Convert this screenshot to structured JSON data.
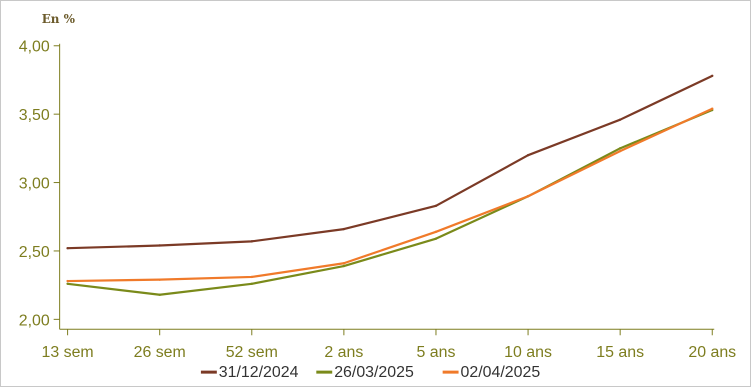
{
  "chart_data": {
    "type": "line",
    "unit_label": "En %",
    "categories": [
      "13 sem",
      "26 sem",
      "52 sem",
      "2 ans",
      "5 ans",
      "10 ans",
      "15 ans",
      "20 ans"
    ],
    "ylim": [
      2.0,
      4.0
    ],
    "yticks": [
      {
        "value": 2.0,
        "label": "2,00"
      },
      {
        "value": 2.5,
        "label": "2,50"
      },
      {
        "value": 3.0,
        "label": "3,00"
      },
      {
        "value": 3.5,
        "label": "3,50"
      },
      {
        "value": 4.0,
        "label": "4,00"
      }
    ],
    "grid": false,
    "legend_position": "bottom",
    "series": [
      {
        "name": "31/12/2024",
        "color": "#7b3a26",
        "values": [
          2.52,
          2.54,
          2.57,
          2.66,
          2.83,
          3.2,
          3.46,
          3.78
        ]
      },
      {
        "name": "26/03/2025",
        "color": "#7a8a1a",
        "values": [
          2.26,
          2.18,
          2.26,
          2.39,
          2.59,
          2.9,
          3.25,
          3.53
        ]
      },
      {
        "name": "02/04/2025",
        "color": "#f07a2a",
        "values": [
          2.28,
          2.29,
          2.31,
          2.41,
          2.64,
          2.9,
          3.23,
          3.54
        ]
      }
    ],
    "axis_color": "#7d7d1f"
  }
}
